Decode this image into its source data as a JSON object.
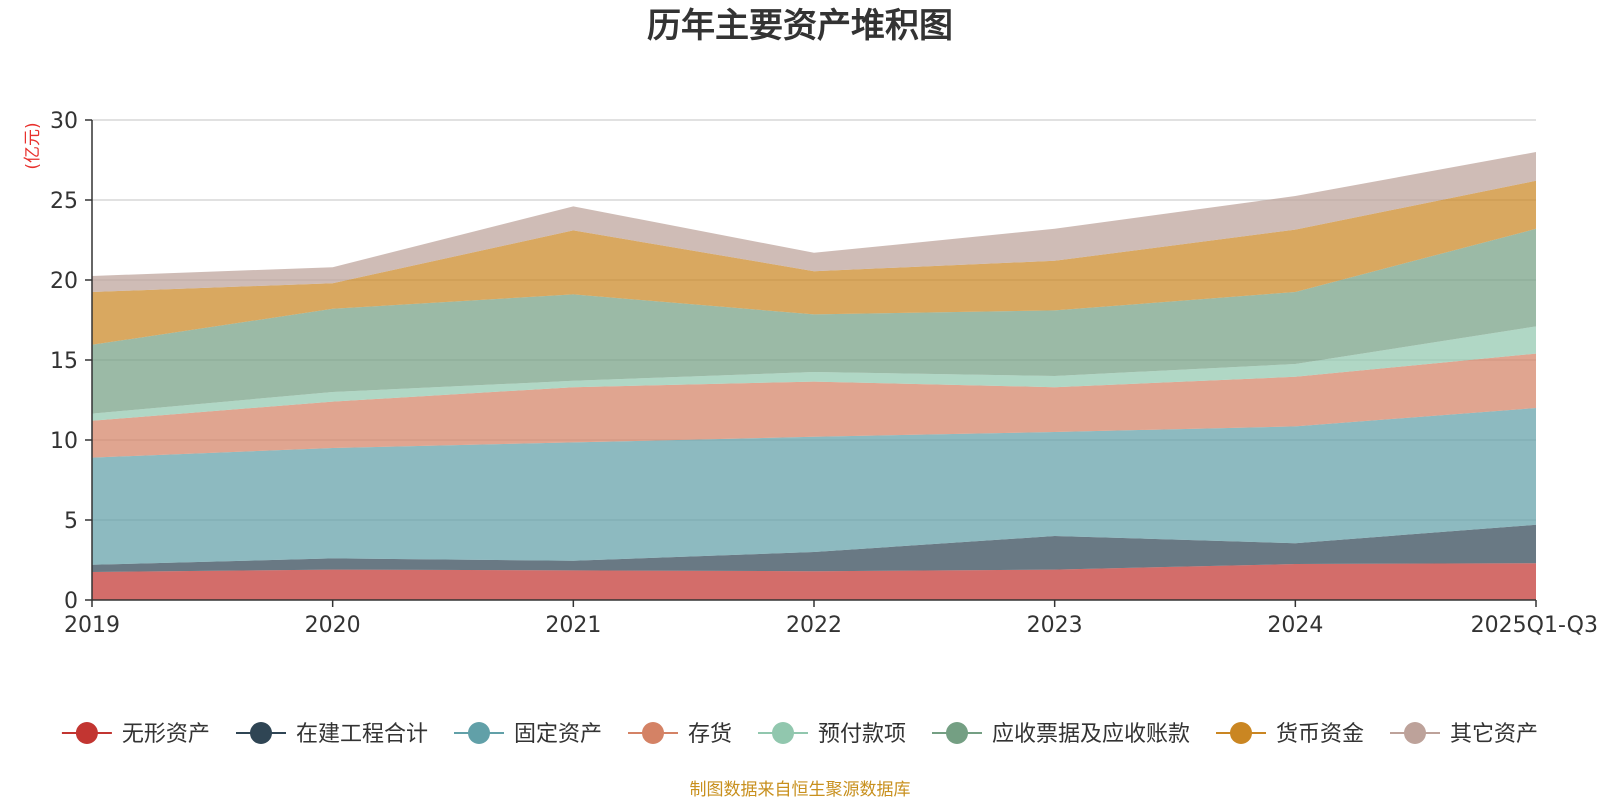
{
  "chart_data": {
    "type": "area",
    "stacked": true,
    "title": "历年主要资产堆积图",
    "ylabel": "(亿元)",
    "xlabel": "",
    "categories": [
      "2019",
      "2020",
      "2021",
      "2022",
      "2023",
      "2024",
      "2025Q1-Q3"
    ],
    "ylim": [
      0,
      30
    ],
    "yticks": [
      0,
      5,
      10,
      15,
      20,
      25,
      30
    ],
    "grid": true,
    "legend_position": "bottom",
    "series": [
      {
        "name": "无形资产",
        "color": "#c23531",
        "values": [
          1.75,
          1.9,
          1.85,
          1.8,
          1.9,
          2.25,
          2.3
        ]
      },
      {
        "name": "在建工程合计",
        "color": "#2f4554",
        "values": [
          0.45,
          0.7,
          0.6,
          1.2,
          2.1,
          1.3,
          2.4
        ]
      },
      {
        "name": "固定资产",
        "color": "#61a0a8",
        "values": [
          6.7,
          6.9,
          7.4,
          7.2,
          6.5,
          7.3,
          7.3
        ]
      },
      {
        "name": "存货",
        "color": "#d48265",
        "values": [
          2.3,
          2.9,
          3.45,
          3.45,
          2.8,
          3.1,
          3.4
        ]
      },
      {
        "name": "预付款项",
        "color": "#91c7ae",
        "values": [
          0.45,
          0.6,
          0.4,
          0.6,
          0.7,
          0.8,
          1.7
        ]
      },
      {
        "name": "应收票据及应收账款",
        "color": "#749f83",
        "values": [
          4.3,
          5.2,
          5.4,
          3.6,
          4.1,
          4.5,
          6.1
        ]
      },
      {
        "name": "货币资金",
        "color": "#ca8622",
        "values": [
          3.3,
          1.6,
          4.0,
          2.7,
          3.1,
          3.9,
          3.0
        ]
      },
      {
        "name": "其它资产",
        "color": "#bda29a",
        "values": [
          1.0,
          1.0,
          1.5,
          1.15,
          2.0,
          2.1,
          1.8
        ]
      }
    ]
  },
  "footer": {
    "source": "制图数据来自恒生聚源数据库"
  }
}
